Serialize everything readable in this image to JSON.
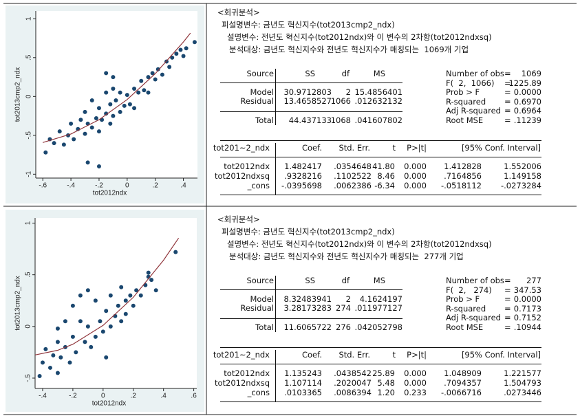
{
  "panels": [
    {
      "chart_data": {
        "type": "scatter",
        "xlabel": "tot2012ndx",
        "ylabel": "tot2013cmp2_ndx",
        "xlim": [
          -0.65,
          0.5
        ],
        "ylim": [
          -1.05,
          1.1
        ],
        "xticks": [
          {
            "value": -0.6,
            "label": "-.6"
          },
          {
            "value": -0.4,
            "label": "-.4"
          },
          {
            "value": -0.2,
            "label": "-.2"
          },
          0,
          {
            "value": 0.2,
            "label": ".2"
          },
          {
            "value": 0.4,
            "label": ".4"
          }
        ],
        "yticks": [
          -1,
          {
            "value": -0.5,
            "label": "-.5"
          },
          0,
          {
            "value": 0.5,
            "label": ".5"
          },
          1
        ],
        "color": "#1a476f",
        "x": [
          -0.58,
          -0.55,
          -0.52,
          -0.48,
          -0.45,
          -0.42,
          -0.4,
          -0.38,
          -0.35,
          -0.33,
          -0.3,
          -0.3,
          -0.28,
          -0.25,
          -0.25,
          -0.22,
          -0.2,
          -0.2,
          -0.18,
          -0.15,
          -0.15,
          -0.12,
          -0.12,
          -0.1,
          -0.1,
          -0.08,
          -0.05,
          -0.05,
          -0.02,
          0,
          0.02,
          0.05,
          0.05,
          0.08,
          0.1,
          0.12,
          0.15,
          0.15,
          0.18,
          0.2,
          0.22,
          0.25,
          0.28,
          0.3,
          0.32,
          0.35,
          0.38,
          0.4,
          0.42,
          0.48,
          -0.2,
          -0.28,
          -0.1,
          -0.15
        ],
        "values": [
          -0.72,
          -0.55,
          -0.6,
          -0.45,
          -0.62,
          -0.5,
          -0.35,
          -0.55,
          -0.42,
          -0.3,
          -0.48,
          -0.2,
          -0.35,
          -0.4,
          -0.05,
          -0.28,
          -0.45,
          -0.15,
          -0.3,
          -0.22,
          0.05,
          -0.35,
          -0.1,
          -0.25,
          0.1,
          -0.05,
          -0.2,
          0.05,
          -0.12,
          0.02,
          -0.1,
          0.1,
          -0.15,
          0.05,
          0.2,
          0.08,
          0.25,
          0.05,
          0.3,
          0.22,
          0.35,
          0.28,
          0.45,
          0.38,
          0.5,
          0.55,
          0.6,
          0.52,
          0.62,
          0.7,
          -0.9,
          -0.85,
          0.25,
          0.3
        ],
        "fit": {
          "color": "#90353b",
          "x": [
            -0.6,
            -0.4,
            -0.2,
            0,
            0.2,
            0.4,
            0.45
          ],
          "values": [
            -0.593,
            -0.483,
            -0.299,
            -0.04,
            0.294,
            0.702,
            0.816
          ]
        }
      },
      "text": {
        "header": [
          "<회귀분석>",
          "피설명변수: 금년도 혁신지수(tot2013cmp2_ndx)",
          "설명변수: 전년도 혁신지수(tot2012ndx)와 이 변수의 2차항(tot2012ndxsq)",
          "분석대상: 금년도 혁신지수와 전년도 혁신지수가 매칭되는  1069개 기업"
        ],
        "anova": {
          "columns": [
            "Source",
            "SS",
            "df",
            "MS"
          ],
          "rows": [
            [
              "Model",
              "30.9712803",
              "2",
              "15.4856401"
            ],
            [
              "Residual",
              "13.4658527",
              "1066",
              ".012632132"
            ]
          ],
          "total": [
            "Total",
            "44.437133",
            "1068",
            ".041607802"
          ]
        },
        "stats": [
          [
            "Number of obs",
            "=",
            "1069"
          ],
          [
            "F(  2,  1066)",
            "=",
            "1225.89"
          ],
          [
            "Prob > F",
            "=",
            "0.0000"
          ],
          [
            "R-squared",
            "=",
            "0.6970"
          ],
          [
            "Adj R-squared",
            "=",
            "0.6964"
          ],
          [
            "Root MSE",
            "=",
            ".11239"
          ]
        ],
        "coef": {
          "columns": [
            "tot201~2_ndx",
            "Coef.",
            "Std. Err.",
            "t",
            "P>|t|",
            "[95% Conf. Interval]"
          ],
          "rows": [
            [
              "tot2012ndx",
              "1.482417",
              ".0354648",
              "41.80",
              "0.000",
              "1.412828",
              "1.552006"
            ],
            [
              "tot2012ndxsq",
              ".9328216",
              ".1102522",
              "8.46",
              "0.000",
              ".7164856",
              "1.149158"
            ],
            [
              "_cons",
              "-.0395698",
              ".0062386",
              "-6.34",
              "0.000",
              "-.0518112",
              "-.0273284"
            ]
          ]
        }
      }
    },
    {
      "chart_data": {
        "type": "scatter",
        "xlabel": "tot2012ndx",
        "ylabel": "tot2013cmp2_ndx",
        "xlim": [
          -0.45,
          0.62
        ],
        "ylim": [
          -0.6,
          1.05
        ],
        "xticks": [
          {
            "value": -0.4,
            "label": "-.4"
          },
          {
            "value": -0.2,
            "label": "-.2"
          },
          0,
          {
            "value": 0.2,
            "label": ".2"
          },
          {
            "value": 0.4,
            "label": ".4"
          },
          {
            "value": 0.6,
            "label": ".6"
          }
        ],
        "yticks": [
          {
            "value": -0.5,
            "label": "-.5"
          },
          0,
          {
            "value": 0.5,
            "label": ".5"
          },
          1
        ],
        "color": "#1a476f",
        "x": [
          -0.42,
          -0.4,
          -0.38,
          -0.35,
          -0.33,
          -0.3,
          -0.3,
          -0.28,
          -0.25,
          -0.25,
          -0.22,
          -0.2,
          -0.2,
          -0.18,
          -0.15,
          -0.15,
          -0.12,
          -0.1,
          -0.1,
          -0.08,
          -0.05,
          -0.05,
          -0.02,
          0,
          0.02,
          0.05,
          0.05,
          0.08,
          0.1,
          0.12,
          0.15,
          0.15,
          0.18,
          0.2,
          0.22,
          0.25,
          0.28,
          0.3,
          0.32,
          0.35,
          0.02,
          0.48,
          0.3,
          -0.3,
          0.12
        ],
        "values": [
          -0.48,
          -0.35,
          -0.22,
          -0.4,
          -0.28,
          -0.15,
          -0.45,
          -0.3,
          -0.2,
          0.05,
          -0.35,
          -0.1,
          0.2,
          -0.25,
          0.05,
          0.3,
          -0.15,
          0,
          0.35,
          -0.2,
          -0.1,
          0.25,
          0.05,
          -0.05,
          0.15,
          0,
          0.3,
          0.1,
          0.2,
          0.05,
          0.25,
          0.12,
          0.3,
          0.2,
          0.35,
          0.3,
          0.4,
          0.48,
          0.45,
          0.35,
          -0.3,
          0.72,
          0.52,
          -0.02,
          0.38
        ],
        "fit": {
          "color": "#90353b",
          "x": [
            -0.45,
            -0.3,
            -0.2,
            0,
            0.2,
            0.4,
            0.5
          ],
          "values": [
            -0.276,
            -0.231,
            -0.172,
            0.01,
            0.282,
            0.641,
            0.855
          ]
        }
      },
      "text": {
        "header": [
          "<회귀분석>",
          "피설명변수: 금년도 혁신지수(tot2013cmp2_ndx)",
          "설명변수: 전년도 혁신지수(tot2012ndx)와 이 변수의 2차항(tot2012ndxsq)",
          "분석대상: 금년도 혁신지수와 전년도 혁신지수가 매칭되는  277개 기업"
        ],
        "anova": {
          "columns": [
            "Source",
            "SS",
            "df",
            "MS"
          ],
          "rows": [
            [
              "Model",
              "8.32483941",
              "2",
              "4.1624197"
            ],
            [
              "Residual",
              "3.28173283",
              "274",
              ".011977127"
            ]
          ],
          "total": [
            "Total",
            "11.6065722",
            "276",
            ".042052798"
          ]
        },
        "stats": [
          [
            "Number of obs",
            "=",
            "277"
          ],
          [
            "F(  2,   274)",
            "=",
            "347.53"
          ],
          [
            "Prob > F",
            "=",
            "0.0000"
          ],
          [
            "R-squared",
            "=",
            "0.7173"
          ],
          [
            "Adj R-squared",
            "=",
            "0.7152"
          ],
          [
            "Root MSE",
            "=",
            ".10944"
          ]
        ],
        "coef": {
          "columns": [
            "tot201~2_ndx",
            "Coef.",
            "Std. Err.",
            "t",
            "P>|t|",
            "[95% Conf. Interval]"
          ],
          "rows": [
            [
              "tot2012ndx",
              "1.135243",
              ".0438542",
              "25.89",
              "0.000",
              "1.048909",
              "1.221577"
            ],
            [
              "tot2012ndxsq",
              "1.107114",
              ".2020047",
              "5.48",
              "0.000",
              ".7094357",
              "1.504793"
            ],
            [
              "_cons",
              ".0103365",
              ".0086394",
              "1.20",
              "0.233",
              "-.0066716",
              ".0273446"
            ]
          ]
        }
      }
    }
  ]
}
